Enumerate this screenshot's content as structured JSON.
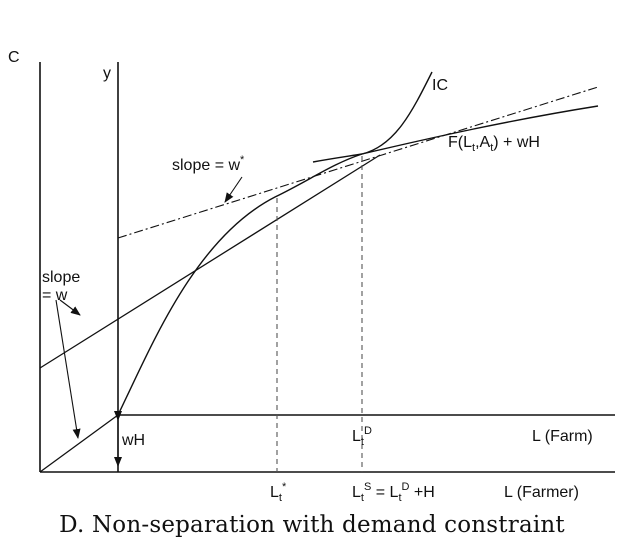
{
  "labels": {
    "c_axis": "C",
    "y_axis": "y",
    "ic": "IC",
    "production": {
      "pre": "F(L",
      "s1": "t",
      "mid": ",A",
      "s2": "t",
      "post": ") + wH"
    },
    "slope_wstar": {
      "text": "slope = w",
      "sup": "*"
    },
    "slope_w_line1": "slope",
    "slope_w_line2": "= w",
    "wh": "wH",
    "ltd": {
      "base": "L",
      "sub": "t",
      "sup": "D"
    },
    "l_farm": "L (Farm)",
    "lt_star": {
      "base": "L",
      "sub": "t",
      "sup": "*"
    },
    "lts_expr": {
      "a": "L",
      "a_sub": "t",
      "a_sup": "S",
      "eq": " = L",
      "b_sub": "t",
      "b_sup": "D",
      "tail": " +H"
    },
    "l_farmer": "L (Farmer)"
  },
  "caption": "D. Non-separation with demand constraint"
}
